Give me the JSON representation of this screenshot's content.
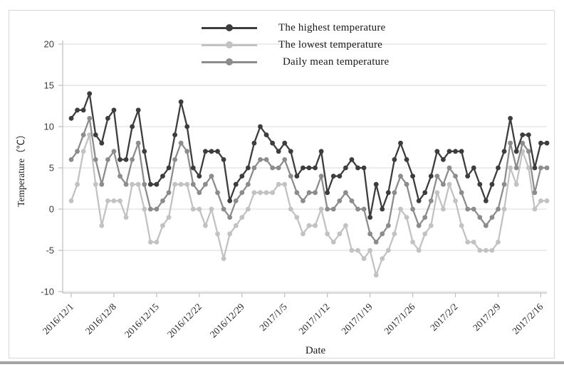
{
  "chart_data": {
    "type": "line",
    "title": "",
    "xlabel": "Date",
    "ylabel": "Temperature（℃）",
    "ylim": [
      -10,
      20
    ],
    "y_ticks": [
      20,
      15,
      10,
      5,
      0,
      -5,
      -10
    ],
    "grid": true,
    "legend_position": "top-center",
    "x_tick_labels": [
      "2016/12/1",
      "2016/12/8",
      "2016/12/15",
      "2016/12/22",
      "2016/12/29",
      "2017/1/5",
      "2017/1/12",
      "2017/1/19",
      "2017/1/26",
      "2017/2/2",
      "2017/2/9",
      "2017/2/16"
    ],
    "days_per_tick": 7,
    "x_unit": "day",
    "series": [
      {
        "name": "The highest temperature",
        "color": "#3d3d3d",
        "values": [
          11,
          12,
          12,
          14,
          9,
          8,
          11,
          12,
          6,
          6,
          10,
          12,
          7,
          3,
          3,
          4,
          5,
          9,
          13,
          10,
          5,
          4,
          7,
          7,
          7,
          6,
          1,
          3,
          4,
          5,
          8,
          10,
          9,
          8,
          7,
          8,
          7,
          4,
          5,
          5,
          5,
          7,
          2,
          4,
          4,
          5,
          6,
          5,
          5,
          -1,
          3,
          0,
          2,
          6,
          8,
          6,
          4,
          1,
          2,
          4,
          7,
          6,
          7,
          7,
          7,
          4,
          5,
          3,
          1,
          3,
          5,
          7,
          11,
          7,
          9,
          9,
          5,
          8,
          8
        ]
      },
      {
        "name": "The lowest temperature",
        "color": "#c2c2c2",
        "values": [
          1,
          3,
          7,
          9,
          3,
          -2,
          1,
          1,
          1,
          -1,
          3,
          3,
          0,
          -4,
          -4,
          -2,
          -1,
          3,
          3,
          3,
          0,
          0,
          -2,
          0,
          -3,
          -6,
          -3,
          -2,
          -1,
          0,
          2,
          2,
          2,
          2,
          3,
          3,
          0,
          -1,
          -3,
          -2,
          -2,
          0,
          -3,
          -4,
          -3,
          -2,
          -5,
          -5,
          -6,
          -5,
          -8,
          -6,
          -5,
          -3,
          0,
          -1,
          -4,
          -5,
          -3,
          -2,
          2,
          0,
          3,
          1,
          -2,
          -4,
          -4,
          -5,
          -5,
          -5,
          -4,
          0,
          5,
          3,
          7,
          5,
          0,
          1,
          1
        ]
      },
      {
        "name": "Daily mean temperature",
        "color": "#8c8c8c",
        "values": [
          6,
          7,
          9,
          11,
          6,
          3,
          6,
          7,
          4,
          3,
          6,
          8,
          3,
          0,
          0,
          1,
          2,
          6,
          8,
          7,
          3,
          2,
          3,
          4,
          2,
          0,
          -1,
          1,
          2,
          3,
          5,
          6,
          6,
          5,
          5,
          6,
          4,
          2,
          1,
          2,
          2,
          4,
          0,
          0,
          1,
          2,
          1,
          0,
          0,
          -3,
          -4,
          -3,
          -2,
          2,
          4,
          3,
          0,
          -2,
          -1,
          1,
          4,
          3,
          5,
          4,
          2,
          0,
          0,
          -1,
          -2,
          -1,
          0,
          3,
          8,
          5,
          8,
          7,
          2,
          5,
          5
        ]
      }
    ],
    "style": {
      "gridline_color": "#d9d9d9",
      "axis_color": "#bfbfbf",
      "tick_label_color": "#3a3a3a",
      "marker_radius": 3.4,
      "line_width": 2.3
    }
  },
  "legend": {
    "items": [
      {
        "label": "The highest temperature"
      },
      {
        "label": "The lowest temperature"
      },
      {
        "label": "Daily mean temperature"
      }
    ]
  }
}
